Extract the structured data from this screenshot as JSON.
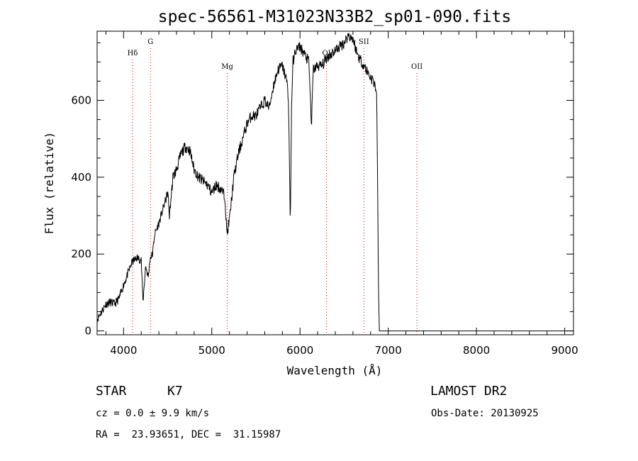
{
  "chart_data": {
    "type": "line",
    "title": "spec-56561-M31023N33B2_sp01-090.fits",
    "xlabel": "Wavelength (Å)",
    "ylabel": "Flux (relative)",
    "xlim": [
      3700,
      9100
    ],
    "ylim": [
      -10,
      780
    ],
    "xticks": [
      4000,
      5000,
      6000,
      7000,
      8000,
      9000
    ],
    "yticks": [
      0,
      200,
      400,
      600
    ],
    "grid": false,
    "series": [
      {
        "x": [
          3700,
          3750,
          3800,
          3850,
          3900,
          3950,
          4000,
          4050,
          4080,
          4100,
          4150,
          4200,
          4220,
          4250,
          4280,
          4300,
          4330,
          4350,
          4400,
          4450,
          4500,
          4520,
          4560,
          4600,
          4650,
          4700,
          4750,
          4800,
          4850,
          4900,
          4950,
          5000,
          5050,
          5100,
          5150,
          5170,
          5200,
          5250,
          5300,
          5350,
          5400,
          5450,
          5500,
          5550,
          5600,
          5650,
          5700,
          5750,
          5800,
          5850,
          5870,
          5885,
          5890,
          5895,
          5905,
          5920,
          5950,
          6000,
          6050,
          6100,
          6130,
          6150,
          6200,
          6250,
          6300,
          6350,
          6400,
          6450,
          6500,
          6550,
          6600,
          6650,
          6700,
          6750,
          6800,
          6830,
          6850,
          6860,
          6870,
          6880,
          6890,
          6900,
          6920,
          6950,
          7000,
          7500,
          8000,
          8500,
          9000,
          9100
        ],
        "y": [
          30,
          50,
          70,
          75,
          70,
          85,
          120,
          150,
          170,
          180,
          190,
          185,
          75,
          170,
          140,
          190,
          200,
          250,
          280,
          320,
          360,
          300,
          400,
          420,
          460,
          480,
          470,
          420,
          400,
          390,
          380,
          360,
          380,
          370,
          350,
          250,
          290,
          400,
          460,
          500,
          540,
          560,
          560,
          580,
          600,
          580,
          640,
          680,
          690,
          650,
          600,
          350,
          275,
          380,
          600,
          700,
          730,
          740,
          720,
          700,
          530,
          680,
          690,
          690,
          710,
          720,
          730,
          740,
          750,
          770,
          760,
          720,
          700,
          680,
          660,
          650,
          640,
          630,
          600,
          380,
          100,
          0,
          0,
          0,
          0,
          0,
          0,
          0,
          0,
          0
        ]
      }
    ],
    "annotations": [
      {
        "label": "Hδ",
        "x": 4102
      },
      {
        "label": "G",
        "x": 4305
      },
      {
        "label": "Mg",
        "x": 5175
      },
      {
        "label": "OI",
        "x": 6300
      },
      {
        "label": "SII",
        "x": 6724
      },
      {
        "label": "OII",
        "x": 7325
      }
    ]
  },
  "info": {
    "object_class": "STAR",
    "subclass": "K7",
    "survey": "LAMOST DR2",
    "cz": "cz = 0.0 ± 9.9 km/s",
    "obs_date": "Obs-Date: 20130925",
    "coords": "RA =  23.93651, DEC =  31.15987"
  },
  "colors": {
    "line": "#000000",
    "marker": "#cc0000"
  }
}
